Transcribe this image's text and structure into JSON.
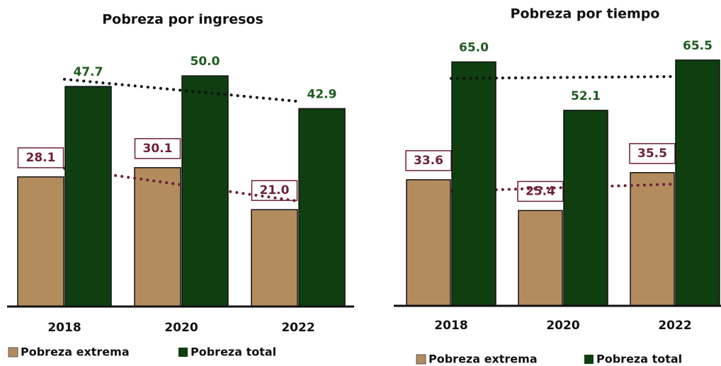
{
  "chart_data": [
    {
      "type": "bar",
      "title": "Pobreza por ingresos",
      "categories": [
        "2018",
        "2020",
        "2022"
      ],
      "series": [
        {
          "name": "Pobreza extrema",
          "color": "#b38c5e",
          "values": [
            28.1,
            30.1,
            21.0
          ],
          "value_labels": [
            "28.1",
            "30.1",
            "21.0"
          ]
        },
        {
          "name": "Pobreza total",
          "color": "#0f3f10",
          "values": [
            47.7,
            50.0,
            42.9
          ],
          "value_labels": [
            "47.7",
            "50.0",
            "42.9"
          ]
        }
      ],
      "ylim": [
        0,
        60
      ],
      "trendline": true,
      "legend": "bottom"
    },
    {
      "type": "bar",
      "title": "Pobreza por tiempo",
      "categories": [
        "2018",
        "2020",
        "2022"
      ],
      "series": [
        {
          "name": "Pobreza extrema",
          "color": "#b38c5e",
          "values": [
            33.6,
            25.4,
            35.5
          ],
          "value_labels": [
            "33.6",
            "25.4",
            "35.5"
          ]
        },
        {
          "name": "Pobreza total",
          "color": "#0f3f10",
          "values": [
            65.0,
            52.1,
            65.5
          ],
          "value_labels": [
            "65.0",
            "52.1",
            "65.5"
          ]
        }
      ],
      "ylim": [
        0,
        70
      ],
      "trendline": true,
      "legend": "bottom"
    }
  ]
}
